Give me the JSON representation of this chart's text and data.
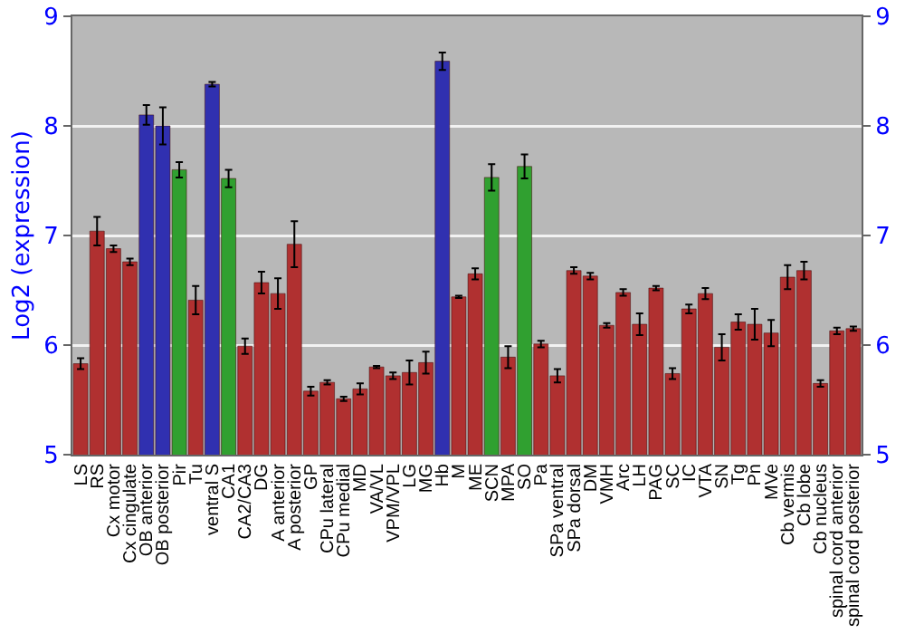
{
  "chart_data": {
    "type": "bar",
    "ylabel": "Log2 (expression)",
    "categories": [
      "LS",
      "RS",
      "Cx motor",
      "Cx cingulate",
      "OB anterior",
      "OB posterior",
      "Pir",
      "Tu",
      "ventral S",
      "CA1",
      "CA2/CA3",
      "DG",
      "A anterior",
      "A posterior",
      "GP",
      "CPu lateral",
      "CPu medial",
      "MD",
      "VA/VL",
      "VPM/VPL",
      "LG",
      "MG",
      "Hb",
      "M",
      "ME",
      "SCN",
      "MPA",
      "SO",
      "Pa",
      "SPa ventral",
      "SPa dorsal",
      "DM",
      "VMH",
      "Arc",
      "LH",
      "PAG",
      "SC",
      "IC",
      "VTA",
      "SN",
      "Tg",
      "Pn",
      "MVe",
      "Cb vermis",
      "Cb lobe",
      "Cb nucleus",
      "spinal cord anterior",
      "spinal cord posterior"
    ],
    "values": [
      5.83,
      7.04,
      6.88,
      6.76,
      8.1,
      8.0,
      7.6,
      6.41,
      8.38,
      7.52,
      5.99,
      6.57,
      6.47,
      6.92,
      5.58,
      5.66,
      5.51,
      5.6,
      5.8,
      5.72,
      5.75,
      5.84,
      8.59,
      6.44,
      6.65,
      7.53,
      5.89,
      7.63,
      6.01,
      5.72,
      6.68,
      6.63,
      6.18,
      6.48,
      6.19,
      6.52,
      5.74,
      6.33,
      6.47,
      5.98,
      6.21,
      6.19,
      6.11,
      6.62,
      6.68,
      5.65,
      6.13,
      6.15
    ],
    "errors": [
      0.05,
      0.13,
      0.03,
      0.03,
      0.09,
      0.17,
      0.07,
      0.13,
      0.02,
      0.08,
      0.07,
      0.1,
      0.14,
      0.21,
      0.04,
      0.02,
      0.02,
      0.05,
      0.01,
      0.03,
      0.11,
      0.1,
      0.08,
      0.01,
      0.05,
      0.12,
      0.1,
      0.11,
      0.03,
      0.06,
      0.03,
      0.03,
      0.02,
      0.03,
      0.1,
      0.02,
      0.05,
      0.04,
      0.05,
      0.12,
      0.07,
      0.14,
      0.12,
      0.11,
      0.08,
      0.03,
      0.03,
      0.02
    ],
    "colors": [
      "#b03030",
      "#b03030",
      "#b03030",
      "#b03030",
      "#3030b0",
      "#3030b0",
      "#30a030",
      "#b03030",
      "#3030b0",
      "#30a030",
      "#b03030",
      "#b03030",
      "#b03030",
      "#b03030",
      "#b03030",
      "#b03030",
      "#b03030",
      "#b03030",
      "#b03030",
      "#b03030",
      "#b03030",
      "#b03030",
      "#3030b0",
      "#b03030",
      "#b03030",
      "#30a030",
      "#b03030",
      "#30a030",
      "#b03030",
      "#b03030",
      "#b03030",
      "#b03030",
      "#b03030",
      "#b03030",
      "#b03030",
      "#b03030",
      "#b03030",
      "#b03030",
      "#b03030",
      "#b03030",
      "#b03030",
      "#b03030",
      "#b03030",
      "#b03030",
      "#b03030",
      "#b03030",
      "#b03030",
      "#b03030"
    ],
    "ylim": [
      5,
      9
    ],
    "yticks": [
      5,
      6,
      7,
      8,
      9
    ],
    "y2lim": [
      5,
      9
    ],
    "y2ticks": [
      5,
      6,
      7,
      8,
      9
    ],
    "grid": "y"
  }
}
